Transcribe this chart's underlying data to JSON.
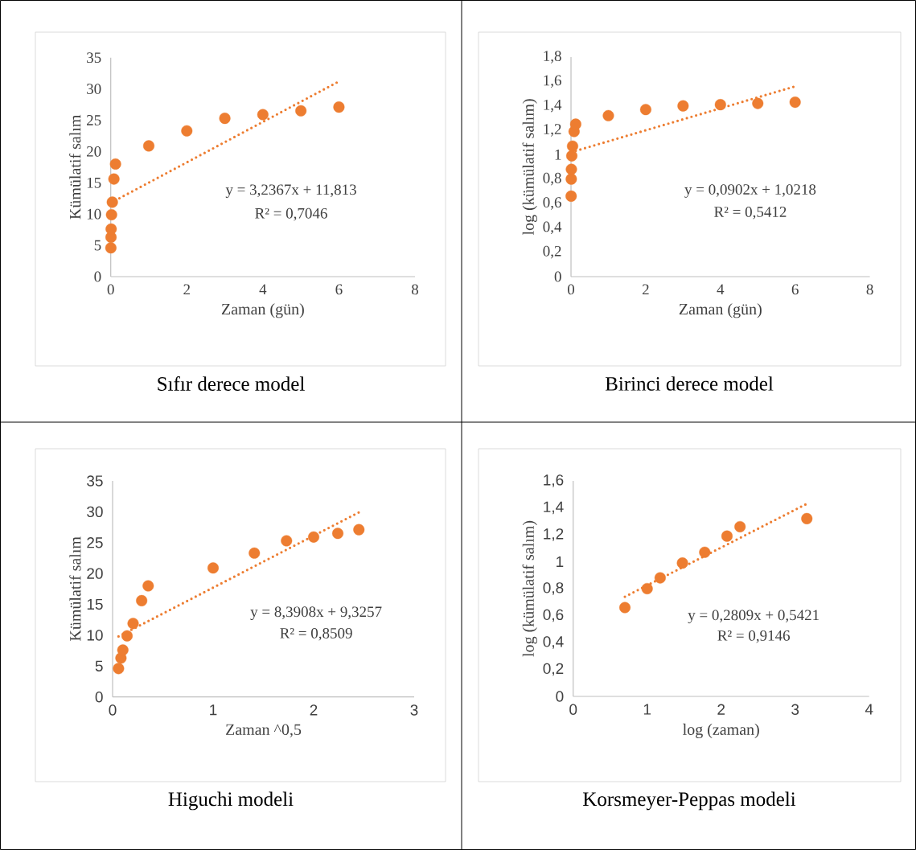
{
  "chart_data": [
    {
      "type": "scatter",
      "xlabel": "Zaman (gün)",
      "ylabel": "Kümülatif salım",
      "xlim": [
        0,
        8
      ],
      "ylim": [
        0,
        35
      ],
      "xticks": [
        0,
        2,
        4,
        6,
        8
      ],
      "yticks": [
        0,
        5,
        10,
        15,
        20,
        25,
        30,
        35
      ],
      "series": [
        {
          "marker": "circle",
          "color": "#ed7d31",
          "x": [
            0.0035,
            0.0069,
            0.0104,
            0.0208,
            0.0417,
            0.0833,
            0.125,
            1,
            2,
            3,
            4,
            5,
            6
          ],
          "values": [
            4.6,
            6.3,
            7.6,
            9.9,
            11.9,
            15.6,
            18.0,
            20.9,
            23.3,
            25.3,
            25.9,
            26.5,
            27.1
          ]
        },
        {
          "type": "line",
          "color": "#ed7d31",
          "line_style": "dotted",
          "x": [
            0.0035,
            6
          ],
          "values": [
            11.8,
            31.2
          ]
        }
      ],
      "annotations": [
        "y = 3,2367x + 11,813",
        "R² = 0,7046",
        "Sıfır derece model"
      ]
    },
    {
      "type": "scatter",
      "xlabel": "Zaman (gün)",
      "ylabel": "log (kümülatif salım)",
      "xlim": [
        0,
        8
      ],
      "ylim": [
        0,
        1.8
      ],
      "xticks": [
        0,
        2,
        4,
        6,
        8
      ],
      "yticks": [
        0,
        {
          "value": 0.2,
          "label": "0,2"
        },
        {
          "value": 0.4,
          "label": "0,4"
        },
        {
          "value": 0.6,
          "label": "0,6"
        },
        {
          "value": 0.8,
          "label": "0,8"
        },
        1,
        {
          "value": 1.2,
          "label": "1,2"
        },
        {
          "value": 1.4,
          "label": "1,4"
        },
        {
          "value": 1.6,
          "label": "1,6"
        },
        {
          "value": 1.8,
          "label": "1,8"
        }
      ],
      "series": [
        {
          "marker": "circle",
          "color": "#ed7d31",
          "x": [
            0.0035,
            0.0069,
            0.0104,
            0.0208,
            0.0417,
            0.0833,
            0.125,
            1,
            2,
            3,
            4,
            5,
            6
          ],
          "values": [
            0.66,
            0.8,
            0.88,
            0.99,
            1.07,
            1.19,
            1.25,
            1.32,
            1.37,
            1.4,
            1.41,
            1.42,
            1.43
          ]
        },
        {
          "type": "line",
          "color": "#ed7d31",
          "line_style": "dotted",
          "x": [
            0.0035,
            6
          ],
          "values": [
            1.02,
            1.56
          ]
        }
      ],
      "annotations": [
        "y = 0,0902x + 1,0218",
        "R² = 0,5412",
        "Birinci derece model"
      ]
    },
    {
      "type": "scatter",
      "xlabel": "Zaman ^0,5",
      "ylabel": "Kümülatif salım",
      "xlim": [
        0,
        3
      ],
      "ylim": [
        0,
        35
      ],
      "xticks": [
        0,
        1,
        2,
        3
      ],
      "yticks": [
        0,
        5,
        10,
        15,
        20,
        25,
        30,
        35
      ],
      "series": [
        {
          "marker": "circle",
          "color": "#ed7d31",
          "x": [
            0.059,
            0.083,
            0.102,
            0.144,
            0.204,
            0.289,
            0.354,
            1,
            1.41,
            1.73,
            2,
            2.24,
            2.45
          ],
          "values": [
            4.6,
            6.3,
            7.6,
            9.9,
            11.9,
            15.6,
            18.0,
            20.9,
            23.3,
            25.3,
            25.9,
            26.5,
            27.1
          ]
        },
        {
          "type": "line",
          "color": "#ed7d31",
          "line_style": "dotted",
          "x": [
            0.059,
            2.45
          ],
          "values": [
            9.8,
            29.9
          ]
        }
      ],
      "annotations": [
        "y = 8,3908x + 9,3257",
        "R² = 0,8509",
        "Higuchi modeli"
      ]
    },
    {
      "type": "scatter",
      "xlabel": "log (zaman)",
      "ylabel": "log (kümülatif salım)",
      "xlim": [
        0,
        4
      ],
      "ylim": [
        0,
        1.6
      ],
      "xticks": [
        0,
        1,
        2,
        3,
        4
      ],
      "yticks": [
        0,
        {
          "value": 0.2,
          "label": "0,2"
        },
        {
          "value": 0.4,
          "label": "0,4"
        },
        {
          "value": 0.6,
          "label": "0,6"
        },
        {
          "value": 0.8,
          "label": "0,8"
        },
        1,
        {
          "value": 1.2,
          "label": "1,2"
        },
        {
          "value": 1.4,
          "label": "1,4"
        },
        {
          "value": 1.6,
          "label": "1,6"
        }
      ],
      "series": [
        {
          "marker": "circle",
          "color": "#ed7d31",
          "x": [
            0.699,
            1.0,
            1.176,
            1.477,
            1.778,
            2.079,
            2.255,
            3.158
          ],
          "values": [
            0.66,
            0.8,
            0.88,
            0.99,
            1.07,
            1.19,
            1.26,
            1.32
          ]
        },
        {
          "type": "line",
          "color": "#ed7d31",
          "line_style": "dotted",
          "x": [
            0.699,
            3.158
          ],
          "values": [
            0.74,
            1.43
          ]
        }
      ],
      "annotations": [
        "y = 0,2809x + 0,5421",
        "R² = 0,9146",
        "Korsmeyer-Peppas modeli"
      ]
    }
  ]
}
